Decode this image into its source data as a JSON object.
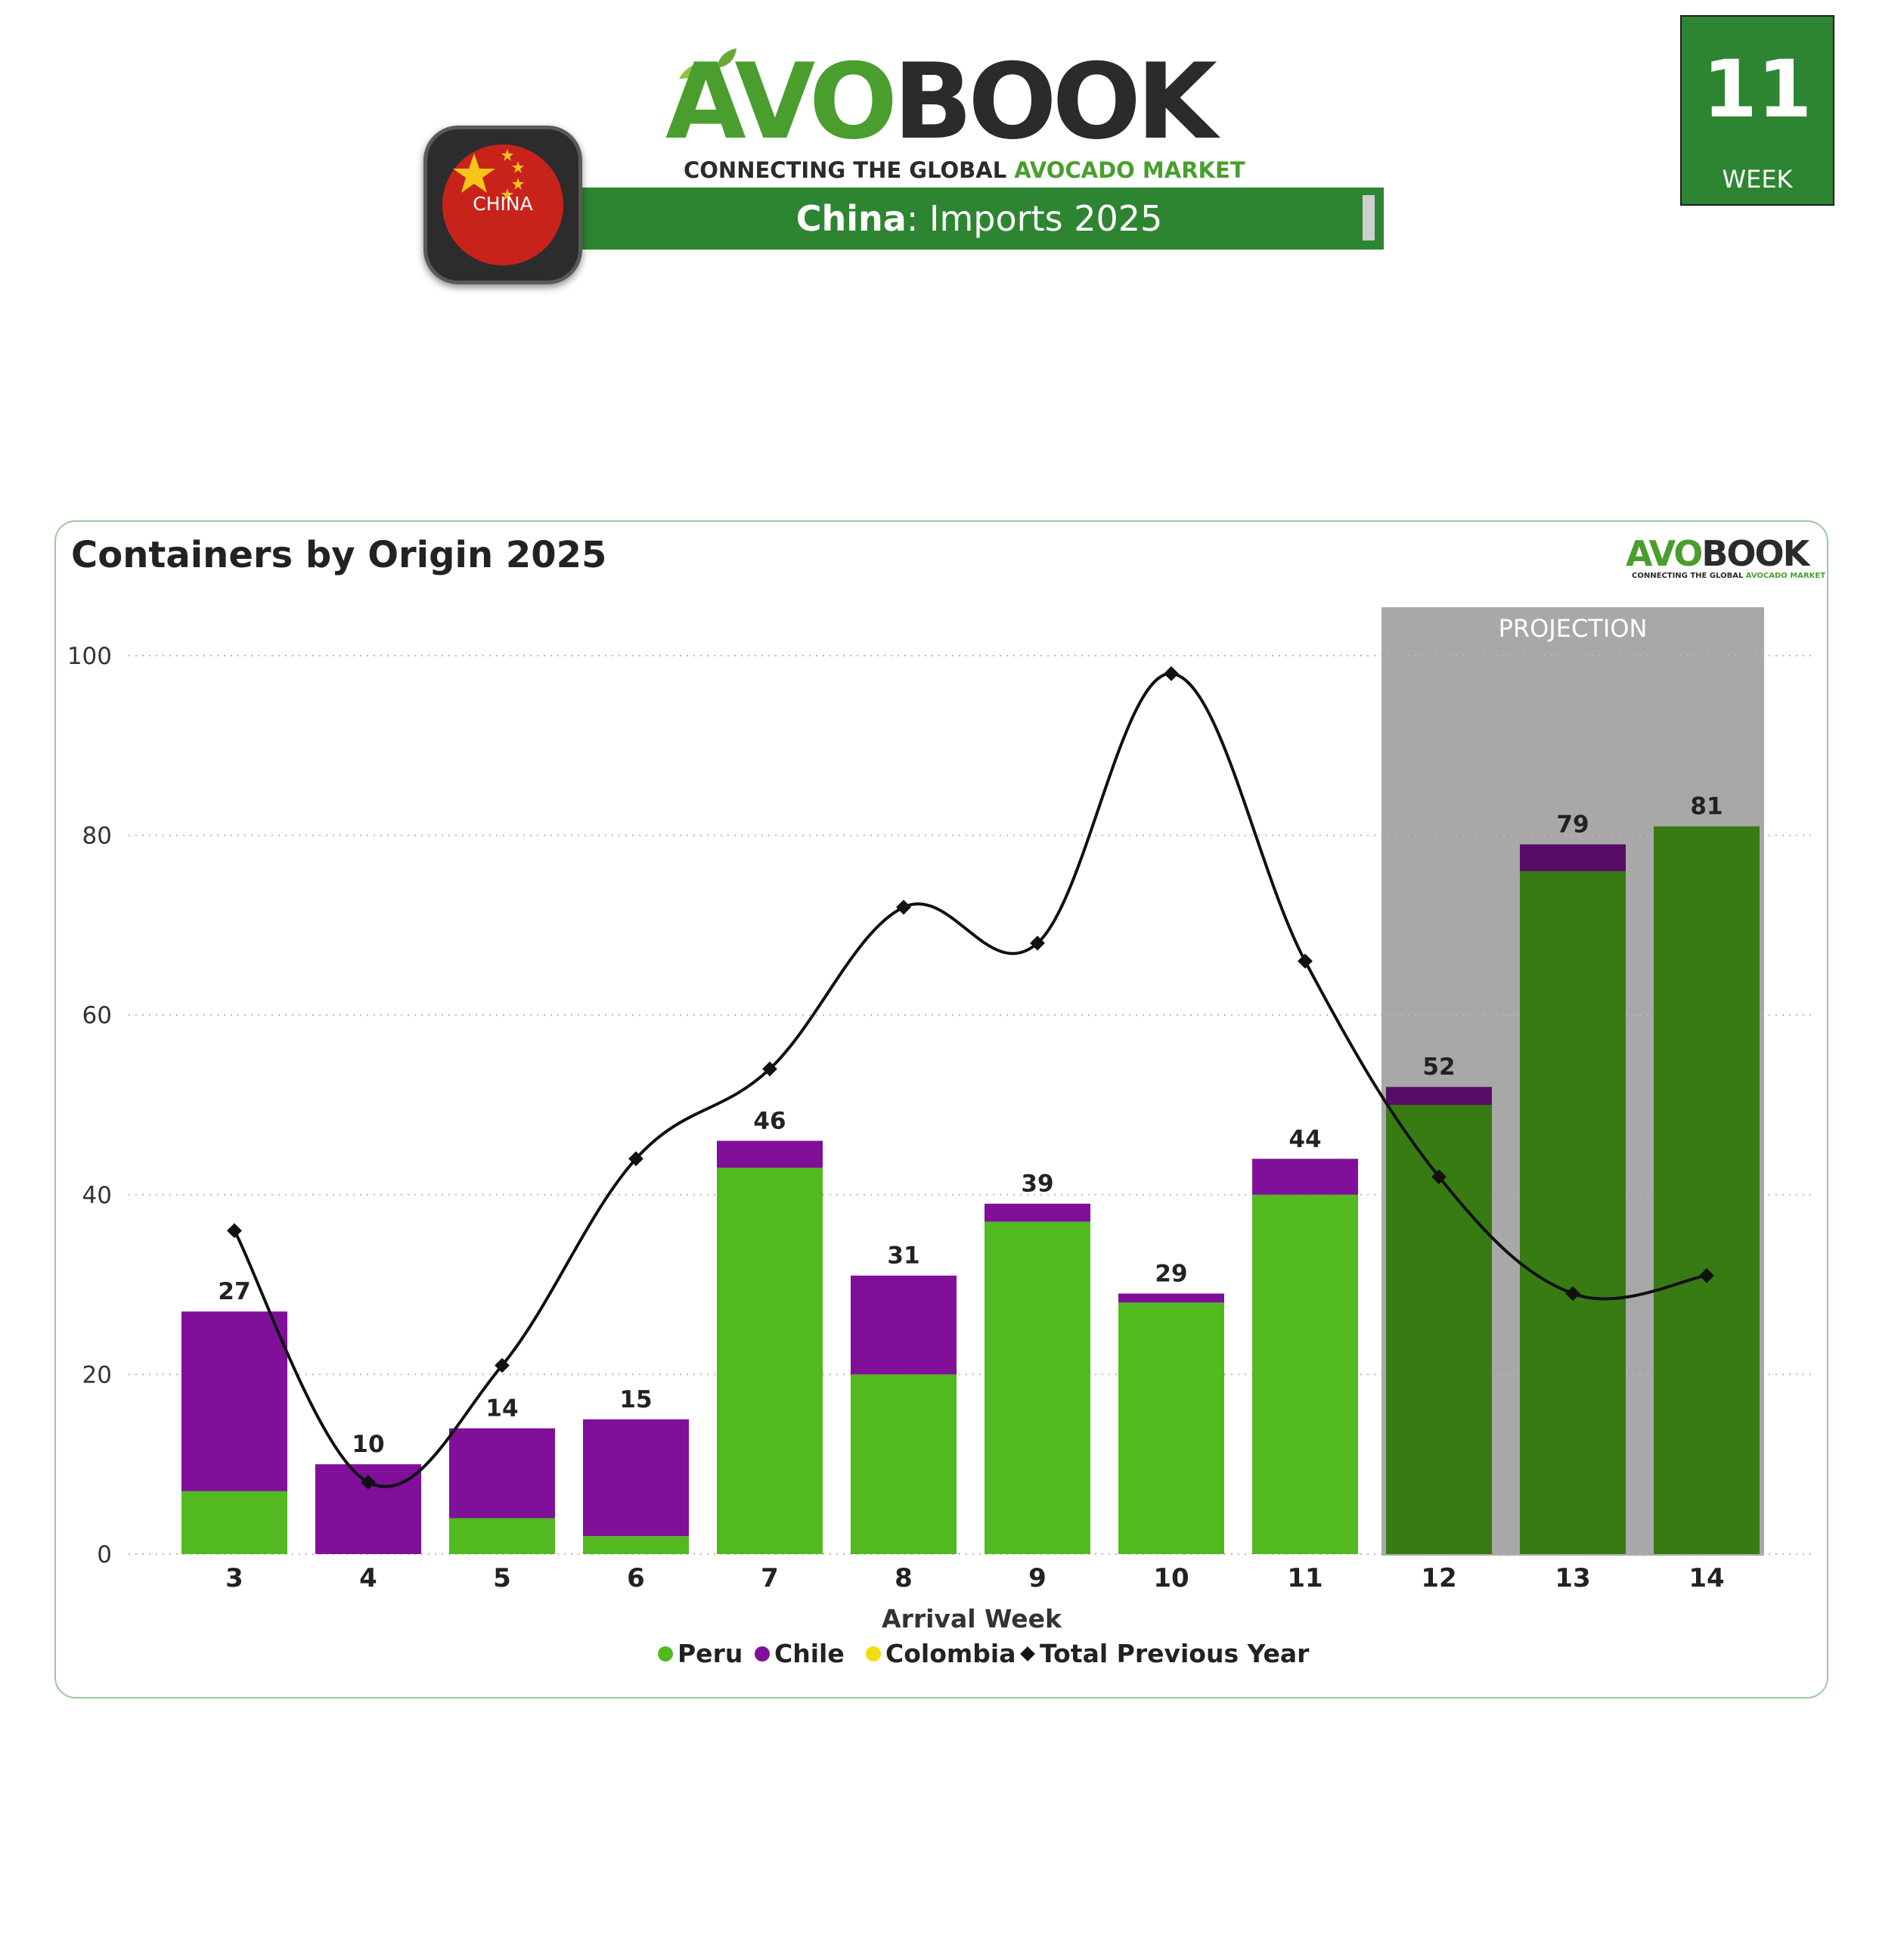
{
  "header": {
    "brand_part1": "AVO",
    "brand_part2": "BOOK",
    "tagline_part1": "CONNECTING THE GLOBAL ",
    "tagline_part2": "AVOCADO MARKET",
    "banner_country": "China",
    "banner_rest": ": Imports 2025",
    "flag_label": "CHINA"
  },
  "week_box": {
    "number": "11",
    "label": "WEEK"
  },
  "colors": {
    "peru": "#52b920",
    "chile": "#800f9a",
    "colombia": "#f2dd13",
    "projection_peru": "#387b13",
    "projection_chile": "#570d68",
    "projection_bg": "#a8a8a8",
    "brand_green": "#2e8531"
  },
  "chart_data": {
    "type": "bar",
    "title": "Containers by Origin 2025",
    "xlabel": "Arrival Week",
    "ylabel": "",
    "ylim": [
      0,
      100
    ],
    "yticks": [
      0,
      20,
      40,
      60,
      80,
      100
    ],
    "categories": [
      "3",
      "4",
      "5",
      "6",
      "7",
      "8",
      "9",
      "10",
      "11",
      "12",
      "13",
      "14"
    ],
    "series": [
      {
        "name": "Peru",
        "type": "bar",
        "values": [
          7,
          0,
          4,
          2,
          43,
          20,
          37,
          28,
          40,
          50,
          76,
          81
        ]
      },
      {
        "name": "Chile",
        "type": "bar",
        "values": [
          20,
          10,
          10,
          13,
          3,
          11,
          2,
          1,
          4,
          2,
          3,
          0
        ]
      },
      {
        "name": "Colombia",
        "type": "bar",
        "values": [
          0,
          0,
          0,
          0,
          0,
          0,
          0,
          0,
          0,
          0,
          0,
          0
        ]
      },
      {
        "name": "Total Previous Year",
        "type": "line",
        "values": [
          36,
          8,
          21,
          44,
          54,
          72,
          68,
          98,
          66,
          42,
          29,
          31
        ]
      }
    ],
    "totals": [
      27,
      10,
      14,
      15,
      46,
      31,
      39,
      29,
      44,
      52,
      79,
      81
    ],
    "projection": {
      "label": "PROJECTION",
      "from_category": "12",
      "to_category": "14"
    },
    "legend_placement": "bottom",
    "grid": true
  }
}
